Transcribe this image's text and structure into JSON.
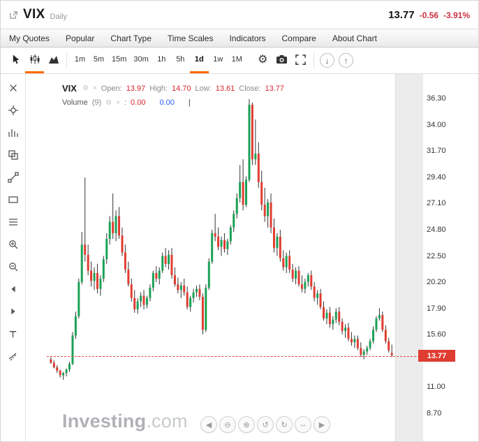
{
  "header": {
    "symbol": "VIX",
    "timeframe": "Daily",
    "price": "13.77",
    "change": "-0.56",
    "change_pct": "-3.91%"
  },
  "menubar": {
    "items": [
      {
        "label": "My Quotes"
      },
      {
        "label": "Popular"
      },
      {
        "label": "Chart Type"
      },
      {
        "label": "Time Scales"
      },
      {
        "label": "Indicators"
      },
      {
        "label": "Compare"
      },
      {
        "label": "About Chart"
      }
    ]
  },
  "toolbar": {
    "timeframes": [
      {
        "label": "1m"
      },
      {
        "label": "5m"
      },
      {
        "label": "15m"
      },
      {
        "label": "30m"
      },
      {
        "label": "1h"
      },
      {
        "label": "5h"
      },
      {
        "label": "1d",
        "selected": true
      },
      {
        "label": "1w"
      },
      {
        "label": "1M"
      }
    ]
  },
  "icons": {
    "gear": "⚙",
    "close": "×",
    "arrow_down": "↓",
    "arrow_up": "↑"
  },
  "left_tools": {
    "icons": [
      "close-drawings-icon",
      "crosshair-icon",
      "bar-pattern-icon",
      "clone-tool-icon",
      "trendline-tool-icon",
      "rectangle-tool-icon",
      "fib-lines-icon",
      "zoom-in-tool-icon",
      "zoom-out-tool-icon",
      "pan-left-icon",
      "pan-right-icon",
      "text-tool-icon",
      "measure-tool-icon"
    ]
  },
  "legend": {
    "symbol": "VIX",
    "open_label": "Open:",
    "open": "13.97",
    "high_label": "High:",
    "high": "14.70",
    "low_label": "Low:",
    "low": "13.61",
    "close_label": "Close:",
    "close": "13.77",
    "volume_label": "Volume",
    "volume_period": "(9)",
    "volume_sep": ":",
    "volume_value": "0.00",
    "volume_value2": "0.00",
    "cursor_bar": "|"
  },
  "watermark": {
    "name": "Investing",
    "suffix": ".com"
  },
  "nav": {
    "buttons": [
      "pan-left-button",
      "zoom-out-button",
      "zoom-in-button",
      "undo-button",
      "redo-button",
      "range-button",
      "pan-right-button"
    ]
  },
  "colors": {
    "up": "#1aa156",
    "down": "#e03c31",
    "accent": "#ff6a00",
    "tag_bg": "#e03c31",
    "change_red": "#ca3142",
    "wick": "#333333"
  },
  "chart_data": {
    "type": "candlestick",
    "title": "VIX Daily",
    "ohlc_legend": {
      "open": 13.97,
      "high": 14.7,
      "low": 13.61,
      "close": 13.77
    },
    "price_line": 13.77,
    "y_axis": {
      "min": 8.7,
      "max": 36.3,
      "tick_step": 2.3,
      "ticks": [
        {
          "value": 36.3,
          "label": "36.30"
        },
        {
          "value": 34.0,
          "label": "34.00"
        },
        {
          "value": 31.7,
          "label": "31.70"
        },
        {
          "value": 29.4,
          "label": "29.40"
        },
        {
          "value": 27.1,
          "label": "27.10"
        },
        {
          "value": 24.8,
          "label": "24.80"
        },
        {
          "value": 22.5,
          "label": "22.50"
        },
        {
          "value": 20.2,
          "label": "20.20"
        },
        {
          "value": 17.9,
          "label": "17.90"
        },
        {
          "value": 15.6,
          "label": "15.60"
        },
        {
          "value": 11.0,
          "label": "11.00"
        },
        {
          "value": 8.7,
          "label": "8.70"
        }
      ],
      "tag": "13.77"
    },
    "candles": [
      [
        13.4,
        13.6,
        13.0,
        13.1
      ],
      [
        13.1,
        13.3,
        12.6,
        12.7
      ],
      [
        12.7,
        12.9,
        12.2,
        12.4
      ],
      [
        12.4,
        12.5,
        11.8,
        12.0
      ],
      [
        12.0,
        12.3,
        11.6,
        12.2
      ],
      [
        12.2,
        12.6,
        11.9,
        12.5
      ],
      [
        12.5,
        13.2,
        12.3,
        13.0
      ],
      [
        13.0,
        15.8,
        12.9,
        15.5
      ],
      [
        15.5,
        17.6,
        15.2,
        17.2
      ],
      [
        17.2,
        20.5,
        17.0,
        20.2
      ],
      [
        20.2,
        24.6,
        20.0,
        23.5
      ],
      [
        23.5,
        29.4,
        22.0,
        22.6
      ],
      [
        22.6,
        23.5,
        20.8,
        21.2
      ],
      [
        21.2,
        22.0,
        19.8,
        20.3
      ],
      [
        20.3,
        21.5,
        19.5,
        21.0
      ],
      [
        21.0,
        21.8,
        19.2,
        19.6
      ],
      [
        19.6,
        20.8,
        19.0,
        20.5
      ],
      [
        20.5,
        22.5,
        20.2,
        22.2
      ],
      [
        22.2,
        24.5,
        21.8,
        24.0
      ],
      [
        24.0,
        26.0,
        23.5,
        25.5
      ],
      [
        25.5,
        28.0,
        24.0,
        24.5
      ],
      [
        24.5,
        26.5,
        23.8,
        26.0
      ],
      [
        26.0,
        26.8,
        24.0,
        24.3
      ],
      [
        24.3,
        25.0,
        22.5,
        22.8
      ],
      [
        22.8,
        23.5,
        21.0,
        21.3
      ],
      [
        21.3,
        22.0,
        19.8,
        20.0
      ],
      [
        20.0,
        20.5,
        18.5,
        18.8
      ],
      [
        18.8,
        19.5,
        17.5,
        17.8
      ],
      [
        17.8,
        18.8,
        17.4,
        18.5
      ],
      [
        18.5,
        19.3,
        18.0,
        19.0
      ],
      [
        19.0,
        19.5,
        17.8,
        18.2
      ],
      [
        18.2,
        19.0,
        17.9,
        18.8
      ],
      [
        18.8,
        20.0,
        18.5,
        19.7
      ],
      [
        19.7,
        21.2,
        19.4,
        21.0
      ],
      [
        21.0,
        21.6,
        20.2,
        20.5
      ],
      [
        20.5,
        21.5,
        20.0,
        21.2
      ],
      [
        21.2,
        22.8,
        21.0,
        22.5
      ],
      [
        22.5,
        23.2,
        21.5,
        21.8
      ],
      [
        21.8,
        23.0,
        21.3,
        22.6
      ],
      [
        22.6,
        23.2,
        20.5,
        20.8
      ],
      [
        20.8,
        21.5,
        19.8,
        20.0
      ],
      [
        20.0,
        20.6,
        19.2,
        19.5
      ],
      [
        19.5,
        20.2,
        18.8,
        19.9
      ],
      [
        19.9,
        20.5,
        19.0,
        19.3
      ],
      [
        19.3,
        19.8,
        17.8,
        18.0
      ],
      [
        18.0,
        19.0,
        17.6,
        18.8
      ],
      [
        18.8,
        19.6,
        18.4,
        19.3
      ],
      [
        19.3,
        19.9,
        18.9,
        19.6
      ],
      [
        19.6,
        20.0,
        18.6,
        18.9
      ],
      [
        18.9,
        19.2,
        15.6,
        16.0
      ],
      [
        16.0,
        20.0,
        15.8,
        19.7
      ],
      [
        19.7,
        22.3,
        19.5,
        22.0
      ],
      [
        22.0,
        24.8,
        21.8,
        24.5
      ],
      [
        24.5,
        26.2,
        23.8,
        24.2
      ],
      [
        24.2,
        25.0,
        23.0,
        23.3
      ],
      [
        23.3,
        24.2,
        22.5,
        23.9
      ],
      [
        23.9,
        24.5,
        22.8,
        23.1
      ],
      [
        23.1,
        24.0,
        22.6,
        23.8
      ],
      [
        23.8,
        25.2,
        23.5,
        25.0
      ],
      [
        25.0,
        26.5,
        24.6,
        26.2
      ],
      [
        26.2,
        28.0,
        25.8,
        27.6
      ],
      [
        27.6,
        30.5,
        27.2,
        29.0
      ],
      [
        29.0,
        31.0,
        26.5,
        27.0
      ],
      [
        27.0,
        29.5,
        26.8,
        29.2
      ],
      [
        29.2,
        36.3,
        29.0,
        35.8
      ],
      [
        35.8,
        36.0,
        30.5,
        31.0
      ],
      [
        31.0,
        34.5,
        30.5,
        31.5
      ],
      [
        31.5,
        32.5,
        28.5,
        29.0
      ],
      [
        29.0,
        30.0,
        26.5,
        27.0
      ],
      [
        27.0,
        28.5,
        25.5,
        26.0
      ],
      [
        26.0,
        27.5,
        25.0,
        27.2
      ],
      [
        27.2,
        28.0,
        24.5,
        25.0
      ],
      [
        25.0,
        25.8,
        22.8,
        23.2
      ],
      [
        23.2,
        24.5,
        22.5,
        24.2
      ],
      [
        24.2,
        24.8,
        22.0,
        22.3
      ],
      [
        22.3,
        23.0,
        21.2,
        21.5
      ],
      [
        21.5,
        22.8,
        21.0,
        22.5
      ],
      [
        22.5,
        23.0,
        21.0,
        21.3
      ],
      [
        21.3,
        21.8,
        20.2,
        20.5
      ],
      [
        20.5,
        21.5,
        20.0,
        21.2
      ],
      [
        21.2,
        21.6,
        19.8,
        20.0
      ],
      [
        20.0,
        20.8,
        19.3,
        19.6
      ],
      [
        19.6,
        20.5,
        19.2,
        20.2
      ],
      [
        20.2,
        21.0,
        19.8,
        20.8
      ],
      [
        20.8,
        21.2,
        19.5,
        19.8
      ],
      [
        19.8,
        20.2,
        18.5,
        18.8
      ],
      [
        18.8,
        19.5,
        18.2,
        19.2
      ],
      [
        19.2,
        19.6,
        17.8,
        18.0
      ],
      [
        18.0,
        18.5,
        16.8,
        17.0
      ],
      [
        17.0,
        17.8,
        16.5,
        17.5
      ],
      [
        17.5,
        18.0,
        16.2,
        16.5
      ],
      [
        16.5,
        17.2,
        16.0,
        16.9
      ],
      [
        16.9,
        17.9,
        16.6,
        17.6
      ],
      [
        17.6,
        18.0,
        16.4,
        16.7
      ],
      [
        16.7,
        17.0,
        15.6,
        15.9
      ],
      [
        15.9,
        16.5,
        15.3,
        16.2
      ],
      [
        16.2,
        16.6,
        15.0,
        15.2
      ],
      [
        15.2,
        15.8,
        14.6,
        14.9
      ],
      [
        14.9,
        15.5,
        14.4,
        15.2
      ],
      [
        15.2,
        15.5,
        14.2,
        14.4
      ],
      [
        14.4,
        14.9,
        13.6,
        13.8
      ],
      [
        13.8,
        14.3,
        13.4,
        14.1
      ],
      [
        14.1,
        14.6,
        13.8,
        14.4
      ],
      [
        14.4,
        15.2,
        14.2,
        15.0
      ],
      [
        15.0,
        16.3,
        14.8,
        16.0
      ],
      [
        16.0,
        17.2,
        15.8,
        17.0
      ],
      [
        17.0,
        17.9,
        16.8,
        17.3
      ],
      [
        17.3,
        17.6,
        15.8,
        16.0
      ],
      [
        16.0,
        16.4,
        14.8,
        15.0
      ],
      [
        15.0,
        15.3,
        14.0,
        14.2
      ],
      [
        13.97,
        14.7,
        13.61,
        13.77
      ]
    ]
  }
}
